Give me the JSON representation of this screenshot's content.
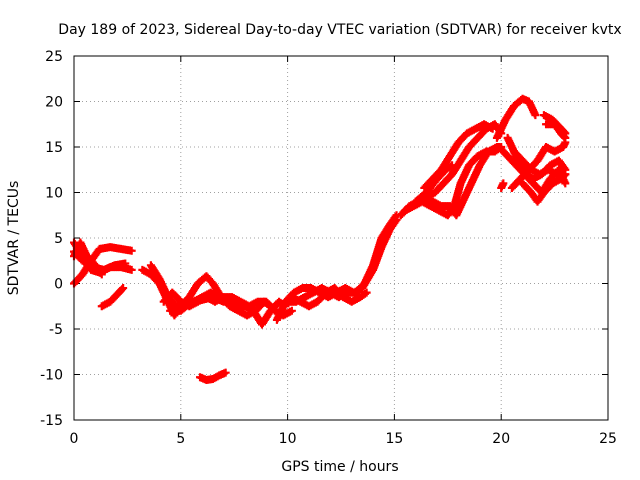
{
  "chart_data": {
    "type": "scatter",
    "title": "Day 189 of 2023, Sidereal Day-to-day VTEC variation (SDTVAR) for receiver kvtx",
    "xlabel": "GPS time / hours",
    "ylabel": "SDTVAR / TECUs",
    "xlim": [
      0,
      25
    ],
    "ylim": [
      -15,
      25
    ],
    "x_ticks": [
      "0",
      "5",
      "10",
      "15",
      "20",
      "25"
    ],
    "y_ticks": [
      "-15",
      "-10",
      "-5",
      "0",
      "5",
      "10",
      "15",
      "20",
      "25"
    ],
    "grid": true,
    "marker": "plus",
    "colors": {
      "series": "#ff0000",
      "grid": "#a0a0a0",
      "axis": "#000000"
    },
    "series": [
      {
        "values": [
          [
            0.0,
            3.0
          ],
          [
            0.3,
            4.5
          ],
          [
            0.6,
            3.0
          ],
          [
            1.0,
            2.0
          ],
          [
            1.3,
            1.0
          ]
        ]
      },
      {
        "values": [
          [
            0.0,
            0.0
          ],
          [
            0.4,
            1.0
          ],
          [
            0.8,
            2.5
          ],
          [
            1.2,
            3.8
          ],
          [
            1.7,
            4.0
          ],
          [
            2.2,
            3.8
          ],
          [
            2.7,
            3.6
          ]
        ]
      },
      {
        "values": [
          [
            0.0,
            4.5
          ],
          [
            0.4,
            3.0
          ],
          [
            0.8,
            1.5
          ],
          [
            1.2,
            1.2
          ],
          [
            1.7,
            1.8
          ],
          [
            2.2,
            1.8
          ],
          [
            2.7,
            1.5
          ]
        ]
      },
      {
        "values": [
          [
            0.0,
            3.5
          ],
          [
            0.4,
            2.5
          ],
          [
            0.9,
            1.8
          ],
          [
            1.4,
            1.5
          ],
          [
            1.9,
            2.0
          ],
          [
            2.4,
            2.2
          ]
        ]
      },
      {
        "values": [
          [
            1.3,
            -2.5
          ],
          [
            1.7,
            -2.0
          ],
          [
            2.1,
            -1.0
          ],
          [
            2.3,
            -0.5
          ]
        ]
      },
      {
        "values": [
          [
            3.2,
            1.5
          ],
          [
            3.6,
            1.0
          ],
          [
            4.0,
            0.0
          ],
          [
            4.4,
            -2.0
          ],
          [
            4.7,
            -3.5
          ],
          [
            5.0,
            -2.5
          ],
          [
            5.4,
            -1.5
          ],
          [
            5.8,
            0.0
          ],
          [
            6.2,
            0.8
          ],
          [
            6.5,
            0.0
          ],
          [
            6.9,
            -1.5
          ],
          [
            7.3,
            -2.5
          ],
          [
            7.7,
            -3.0
          ],
          [
            8.1,
            -3.5
          ],
          [
            8.5,
            -3.0
          ],
          [
            8.9,
            -2.0
          ],
          [
            9.2,
            -2.5
          ]
        ]
      },
      {
        "values": [
          [
            3.6,
            2.0
          ],
          [
            4.0,
            0.5
          ],
          [
            4.4,
            -1.5
          ],
          [
            4.8,
            -2.5
          ],
          [
            5.2,
            -2.0
          ],
          [
            5.6,
            -2.0
          ],
          [
            6.0,
            -1.5
          ],
          [
            6.4,
            -1.0
          ],
          [
            6.8,
            -1.5
          ],
          [
            7.2,
            -2.0
          ],
          [
            7.6,
            -2.5
          ],
          [
            8.0,
            -2.5
          ],
          [
            8.4,
            -3.0
          ],
          [
            8.8,
            -4.5
          ],
          [
            9.2,
            -3.0
          ],
          [
            9.6,
            -2.0
          ],
          [
            9.9,
            -2.5
          ]
        ]
      },
      {
        "values": [
          [
            4.2,
            -2.0
          ],
          [
            4.6,
            -1.0
          ],
          [
            5.0,
            -2.0
          ],
          [
            5.4,
            -2.5
          ],
          [
            5.8,
            -2.0
          ],
          [
            6.2,
            -1.5
          ],
          [
            6.6,
            -2.0
          ],
          [
            7.0,
            -1.5
          ],
          [
            7.4,
            -1.5
          ],
          [
            7.8,
            -2.0
          ],
          [
            8.2,
            -2.5
          ],
          [
            8.6,
            -2.0
          ],
          [
            9.0,
            -2.0
          ],
          [
            9.4,
            -3.0
          ],
          [
            9.8,
            -3.5
          ],
          [
            10.2,
            -3.0
          ]
        ]
      },
      {
        "values": [
          [
            4.5,
            -3.0
          ],
          [
            5.0,
            -3.0
          ],
          [
            5.5,
            -2.0
          ],
          [
            6.0,
            -1.8
          ],
          [
            6.5,
            -1.5
          ],
          [
            7.0,
            -2.0
          ]
        ]
      },
      {
        "values": [
          [
            5.9,
            -10.3
          ],
          [
            6.2,
            -10.6
          ],
          [
            6.5,
            -10.5
          ],
          [
            6.8,
            -10.1
          ],
          [
            7.1,
            -9.8
          ]
        ]
      },
      {
        "values": [
          [
            9.5,
            -4.0
          ],
          [
            9.9,
            -2.0
          ],
          [
            10.3,
            -1.0
          ],
          [
            10.7,
            -0.5
          ],
          [
            11.1,
            -0.5
          ],
          [
            11.5,
            -1.0
          ],
          [
            11.9,
            -1.5
          ],
          [
            12.3,
            -1.0
          ],
          [
            12.7,
            -0.5
          ],
          [
            13.1,
            -1.0
          ],
          [
            13.5,
            -0.5
          ],
          [
            14.0,
            1.5
          ],
          [
            14.4,
            4.0
          ],
          [
            14.8,
            6.0
          ],
          [
            15.1,
            7.0
          ]
        ]
      },
      {
        "values": [
          [
            10.0,
            -2.0
          ],
          [
            10.4,
            -2.0
          ],
          [
            10.8,
            -1.5
          ],
          [
            11.2,
            -1.0
          ],
          [
            11.6,
            -0.5
          ],
          [
            12.0,
            -1.0
          ],
          [
            12.4,
            -1.5
          ],
          [
            12.8,
            -1.0
          ],
          [
            13.2,
            -1.0
          ],
          [
            13.6,
            0.0
          ],
          [
            14.0,
            2.0
          ],
          [
            14.4,
            5.0
          ],
          [
            14.8,
            6.5
          ],
          [
            15.1,
            7.5
          ]
        ]
      },
      {
        "values": [
          [
            10.2,
            -1.5
          ],
          [
            10.6,
            -2.0
          ],
          [
            11.0,
            -2.5
          ],
          [
            11.4,
            -2.0
          ],
          [
            11.8,
            -1.0
          ],
          [
            12.2,
            -0.5
          ],
          [
            12.6,
            -1.5
          ],
          [
            13.0,
            -2.0
          ],
          [
            13.4,
            -1.5
          ],
          [
            13.7,
            -1.0
          ]
        ]
      },
      {
        "values": [
          [
            15.3,
            7.5
          ],
          [
            15.7,
            8.5
          ],
          [
            16.1,
            9.0
          ],
          [
            16.5,
            9.5
          ],
          [
            16.9,
            10.0
          ],
          [
            17.3,
            11.0
          ],
          [
            17.7,
            12.0
          ],
          [
            18.1,
            13.5
          ],
          [
            18.5,
            15.0
          ],
          [
            18.9,
            16.0
          ],
          [
            19.3,
            17.0
          ],
          [
            19.7,
            17.5
          ],
          [
            20.0,
            16.5
          ]
        ]
      },
      {
        "values": [
          [
            15.5,
            8.0
          ],
          [
            15.9,
            8.5
          ],
          [
            16.3,
            9.0
          ],
          [
            16.7,
            8.5
          ],
          [
            17.1,
            8.0
          ],
          [
            17.5,
            7.5
          ],
          [
            17.8,
            8.5
          ],
          [
            18.1,
            11.0
          ],
          [
            18.5,
            13.0
          ],
          [
            18.9,
            14.0
          ],
          [
            19.3,
            14.5
          ],
          [
            19.7,
            14.5
          ],
          [
            20.0,
            15.0
          ]
        ]
      },
      {
        "values": [
          [
            16.0,
            9.0
          ],
          [
            16.4,
            9.5
          ],
          [
            16.8,
            9.0
          ],
          [
            17.2,
            8.5
          ],
          [
            17.6,
            8.5
          ],
          [
            17.9,
            7.5
          ],
          [
            18.2,
            9.0
          ],
          [
            18.6,
            11.0
          ],
          [
            19.0,
            13.0
          ],
          [
            19.4,
            14.5
          ],
          [
            19.8,
            15.0
          ]
        ]
      },
      {
        "values": [
          [
            16.4,
            10.5
          ],
          [
            16.8,
            11.5
          ],
          [
            17.2,
            12.5
          ],
          [
            17.6,
            14.0
          ],
          [
            18.0,
            15.5
          ],
          [
            18.4,
            16.5
          ],
          [
            18.8,
            17.0
          ],
          [
            19.2,
            17.5
          ],
          [
            19.6,
            17.0
          ]
        ]
      },
      {
        "values": [
          [
            16.0,
            9.0
          ],
          [
            16.5,
            10.0
          ],
          [
            17.0,
            11.5
          ],
          [
            17.4,
            12.5
          ],
          [
            17.7,
            13.0
          ]
        ]
      },
      {
        "values": [
          [
            19.8,
            16.0
          ],
          [
            20.2,
            18.0
          ],
          [
            20.6,
            19.5
          ],
          [
            21.0,
            20.3
          ],
          [
            21.3,
            20.0
          ],
          [
            21.6,
            18.5
          ]
        ]
      },
      {
        "values": [
          [
            19.9,
            15.0
          ],
          [
            20.3,
            14.0
          ],
          [
            20.7,
            13.0
          ],
          [
            21.1,
            12.0
          ],
          [
            21.5,
            11.0
          ],
          [
            21.9,
            10.0
          ],
          [
            22.3,
            11.5
          ],
          [
            22.7,
            12.5
          ],
          [
            23.0,
            11.0
          ]
        ]
      },
      {
        "values": [
          [
            20.3,
            16.0
          ],
          [
            20.7,
            14.0
          ],
          [
            21.1,
            12.0
          ],
          [
            21.5,
            11.5
          ],
          [
            21.9,
            12.0
          ],
          [
            22.3,
            13.0
          ],
          [
            22.7,
            13.5
          ],
          [
            23.0,
            12.5
          ]
        ]
      },
      {
        "values": [
          [
            20.5,
            10.5
          ],
          [
            20.9,
            11.5
          ],
          [
            21.3,
            12.5
          ],
          [
            21.7,
            13.5
          ],
          [
            22.1,
            15.0
          ],
          [
            22.5,
            14.5
          ],
          [
            22.9,
            15.0
          ],
          [
            23.0,
            15.5
          ]
        ]
      },
      {
        "values": [
          [
            21.0,
            11.0
          ],
          [
            21.4,
            10.0
          ],
          [
            21.7,
            9.0
          ],
          [
            22.0,
            10.0
          ],
          [
            22.4,
            11.0
          ],
          [
            22.8,
            11.5
          ],
          [
            23.0,
            12.0
          ]
        ]
      },
      {
        "values": [
          [
            20.6,
            14.5
          ],
          [
            21.0,
            13.5
          ],
          [
            21.4,
            12.5
          ],
          [
            21.8,
            12.0
          ],
          [
            22.2,
            12.5
          ],
          [
            22.6,
            12.0
          ],
          [
            23.0,
            12.0
          ]
        ]
      },
      {
        "values": [
          [
            22.1,
            17.5
          ],
          [
            22.5,
            17.5
          ],
          [
            22.8,
            16.5
          ],
          [
            23.0,
            16.0
          ]
        ]
      },
      {
        "values": [
          [
            22.0,
            18.5
          ],
          [
            22.4,
            18.0
          ],
          [
            22.8,
            17.0
          ],
          [
            23.0,
            16.5
          ]
        ]
      },
      {
        "values": [
          [
            20.0,
            10.5
          ],
          [
            20.1,
            11.0
          ]
        ]
      }
    ]
  }
}
